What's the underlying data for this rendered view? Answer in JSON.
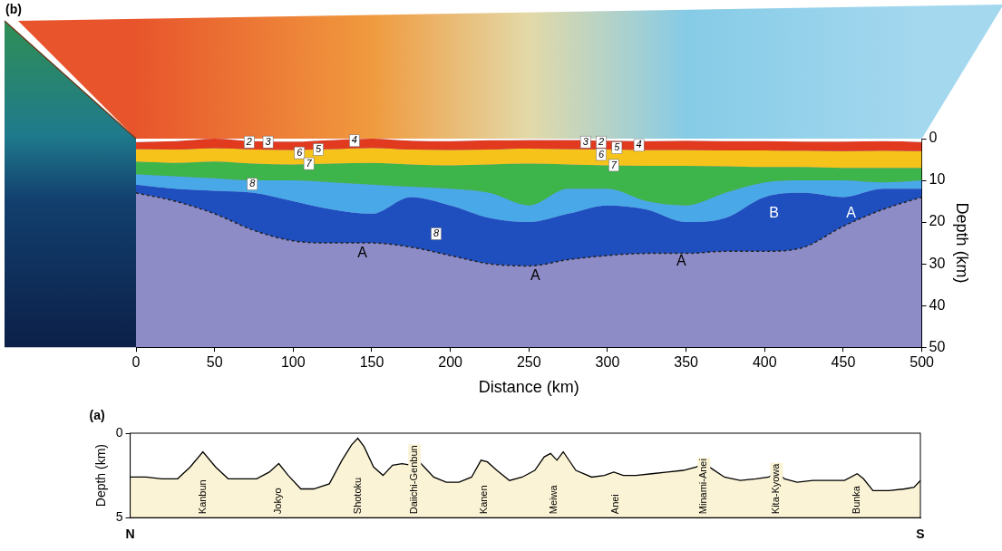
{
  "chart_data": [
    {
      "panel": "(b)",
      "type": "area",
      "x_label": "Distance (km)",
      "y_label": "Depth (km)",
      "x": [
        0,
        25,
        50,
        75,
        100,
        125,
        150,
        175,
        200,
        225,
        250,
        275,
        300,
        325,
        350,
        375,
        400,
        425,
        450,
        475,
        500
      ],
      "series": [
        {
          "color": "#e23a1f",
          "values": [
            0.8,
            0.6,
            0.0,
            0.6,
            0.7,
            0.3,
            0.0,
            0.5,
            0.6,
            0.4,
            0.3,
            0.3,
            0.5,
            0.6,
            0.5,
            0.6,
            0.6,
            0.7,
            0.7,
            0.6,
            0.8
          ]
        },
        {
          "color": "#f6c31a",
          "values": [
            2.5,
            2.6,
            2.3,
            2.6,
            2.7,
            2.5,
            2.2,
            2.6,
            2.7,
            2.6,
            2.4,
            2.5,
            2.6,
            2.7,
            2.7,
            2.8,
            2.8,
            2.9,
            3.0,
            2.9,
            3.0
          ]
        },
        {
          "color": "#3db54a",
          "values": [
            5.5,
            5.8,
            5.5,
            6.0,
            6.2,
            6.0,
            5.8,
            6.2,
            6.4,
            6.2,
            6.0,
            6.2,
            6.4,
            6.5,
            6.5,
            6.6,
            6.8,
            6.8,
            7.0,
            7.0,
            7.0
          ]
        },
        {
          "color": "#49a8e8",
          "values": [
            8.5,
            9.0,
            9.5,
            10.0,
            10.0,
            10.5,
            11.0,
            11.5,
            12.0,
            13.0,
            16.0,
            12.0,
            12.0,
            15.0,
            16.0,
            13.0,
            10.5,
            10.0,
            10.0,
            10.5,
            10.0
          ]
        },
        {
          "color": "#1f4fbf",
          "values": [
            11,
            12,
            12.5,
            13,
            15,
            17,
            18,
            14,
            16,
            19,
            20,
            18,
            16,
            17,
            20,
            19,
            14,
            13,
            14,
            12,
            12
          ]
        },
        {
          "color": "#8e8cc6",
          "line_style": "dotted",
          "values": [
            13,
            15,
            18,
            22,
            24.5,
            25,
            25,
            26,
            28,
            30,
            30.5,
            29,
            28,
            27.5,
            27.5,
            27,
            27,
            26,
            21,
            17,
            14
          ]
        }
      ],
      "xlim": [
        0,
        500
      ],
      "xticks": [
        0,
        50,
        100,
        150,
        200,
        250,
        300,
        350,
        400,
        450,
        500
      ],
      "ylim": [
        0,
        50
      ],
      "yticks": [
        0,
        10,
        20,
        30,
        40,
        50
      ],
      "grid": false,
      "annotations": [
        {
          "text": "2",
          "x": 72,
          "y": 0.8,
          "color": "#000000"
        },
        {
          "text": "3",
          "x": 84,
          "y": 0.8,
          "color": "#000000"
        },
        {
          "text": "4",
          "x": 139,
          "y": 0.5,
          "color": "#000000"
        },
        {
          "text": "5",
          "x": 116,
          "y": 2.6,
          "color": "#000000"
        },
        {
          "text": "6",
          "x": 104,
          "y": 3.4,
          "color": "#000000"
        },
        {
          "text": "7",
          "x": 110,
          "y": 6.0,
          "color": "#000000"
        },
        {
          "text": "8",
          "x": 74,
          "y": 10.9,
          "color": "#000000"
        },
        {
          "text": "8",
          "x": 191,
          "y": 22.8,
          "color": "#000000"
        },
        {
          "text": "3",
          "x": 286,
          "y": 0.8,
          "color": "#000000"
        },
        {
          "text": "2",
          "x": 296,
          "y": 0.8,
          "color": "#000000"
        },
        {
          "text": "5",
          "x": 306,
          "y": 2.2,
          "color": "#000000"
        },
        {
          "text": "4",
          "x": 320,
          "y": 1.6,
          "color": "#000000"
        },
        {
          "text": "6",
          "x": 296,
          "y": 3.8,
          "color": "#000000"
        },
        {
          "text": "7",
          "x": 304,
          "y": 6.4,
          "color": "#000000"
        },
        {
          "text": "A",
          "x": 144,
          "y": 27.5,
          "color": "#000000"
        },
        {
          "text": "A",
          "x": 254,
          "y": 33,
          "color": "#000000"
        },
        {
          "text": "A",
          "x": 347,
          "y": 29.5,
          "color": "#000000"
        },
        {
          "text": "B",
          "x": 406,
          "y": 18,
          "color": "#ffffff"
        },
        {
          "text": "A",
          "x": 455,
          "y": 18,
          "color": "#ffffff"
        }
      ]
    },
    {
      "panel": "(a)",
      "type": "area",
      "y_label": "Depth (km)",
      "x": [
        0,
        10,
        20,
        30,
        38,
        46,
        54,
        62,
        70,
        80,
        88,
        94,
        100,
        108,
        116,
        126,
        134,
        140,
        144,
        148,
        154,
        160,
        166,
        172,
        178,
        182,
        186,
        192,
        200,
        208,
        216,
        222,
        226,
        232,
        240,
        248,
        256,
        262,
        266,
        270,
        274,
        282,
        292,
        300,
        306,
        312,
        320,
        330,
        340,
        350,
        358,
        363,
        368,
        376,
        386,
        396,
        404,
        409,
        414,
        422,
        432,
        442,
        452,
        460,
        464,
        470,
        480,
        490,
        496,
        500
      ],
      "values": [
        2.6,
        2.6,
        2.7,
        2.7,
        2.0,
        1.1,
        2.0,
        2.7,
        2.7,
        2.7,
        2.3,
        1.8,
        2.5,
        3.3,
        3.3,
        3.0,
        1.6,
        0.7,
        0.3,
        0.8,
        2.0,
        2.5,
        1.9,
        1.8,
        1.9,
        1.6,
        2.0,
        2.6,
        2.9,
        2.9,
        2.6,
        1.6,
        1.7,
        2.2,
        2.8,
        2.6,
        2.2,
        1.4,
        1.2,
        1.6,
        1.1,
        2.2,
        2.6,
        2.5,
        2.3,
        2.5,
        2.5,
        2.4,
        2.3,
        2.2,
        2.0,
        1.8,
        2.1,
        2.6,
        2.8,
        2.7,
        2.6,
        2.3,
        2.7,
        2.9,
        2.8,
        2.8,
        2.8,
        2.4,
        2.7,
        3.4,
        3.4,
        3.3,
        3.2,
        2.8
      ],
      "color": "#fbf3d5",
      "xlim": [
        0,
        500
      ],
      "xticks": [
        {
          "value": 0,
          "label": "N"
        },
        {
          "value": 500,
          "label": "S"
        }
      ],
      "ylim": [
        0,
        5
      ],
      "yticks": [
        0,
        5
      ],
      "grid": false,
      "annotations": [
        {
          "text": "Kanbun",
          "x": 46
        },
        {
          "text": "Jokyo",
          "x": 94
        },
        {
          "text": "Shotoku",
          "x": 144
        },
        {
          "text": "Daiichi-Genbun",
          "x": 180
        },
        {
          "text": "Kanen",
          "x": 224
        },
        {
          "text": "Meiwa",
          "x": 268
        },
        {
          "text": "Anei",
          "x": 307
        },
        {
          "text": "Minami-Anei",
          "x": 363
        },
        {
          "text": "Kita-Kyowa",
          "x": 409
        },
        {
          "text": "Bunka",
          "x": 460
        }
      ]
    }
  ]
}
